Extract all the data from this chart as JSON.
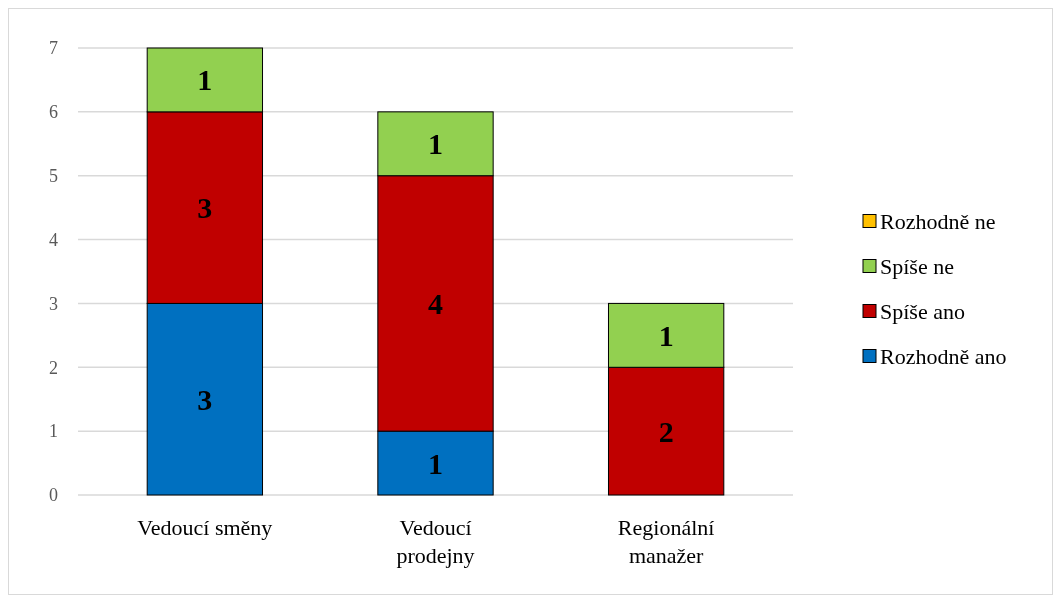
{
  "chart_data": {
    "type": "bar",
    "stacked": true,
    "categories": [
      "Vedoucí směny",
      "Vedoucí prodejny",
      "Regionální manažer"
    ],
    "series": [
      {
        "name": "Rozhodně ano",
        "color": "#0070c0",
        "values": [
          3,
          1,
          0
        ],
        "value_labels": [
          "3",
          "1",
          null
        ]
      },
      {
        "name": "Spíše ano",
        "color": "#c00000",
        "values": [
          3,
          4,
          2
        ],
        "value_labels": [
          "3",
          "4",
          "2"
        ]
      },
      {
        "name": "Spíše ne",
        "color": "#92d050",
        "values": [
          1,
          1,
          1
        ],
        "value_labels": [
          "1",
          "1",
          "1"
        ]
      },
      {
        "name": "Rozhodně ne",
        "color": "#ffc000",
        "values": [
          0,
          0,
          0
        ],
        "value_labels": [
          null,
          null,
          null
        ]
      }
    ],
    "ylim": [
      0,
      7
    ],
    "yticks": [
      0,
      1,
      2,
      3,
      4,
      5,
      6,
      7
    ],
    "grid": true,
    "legend": "right"
  }
}
